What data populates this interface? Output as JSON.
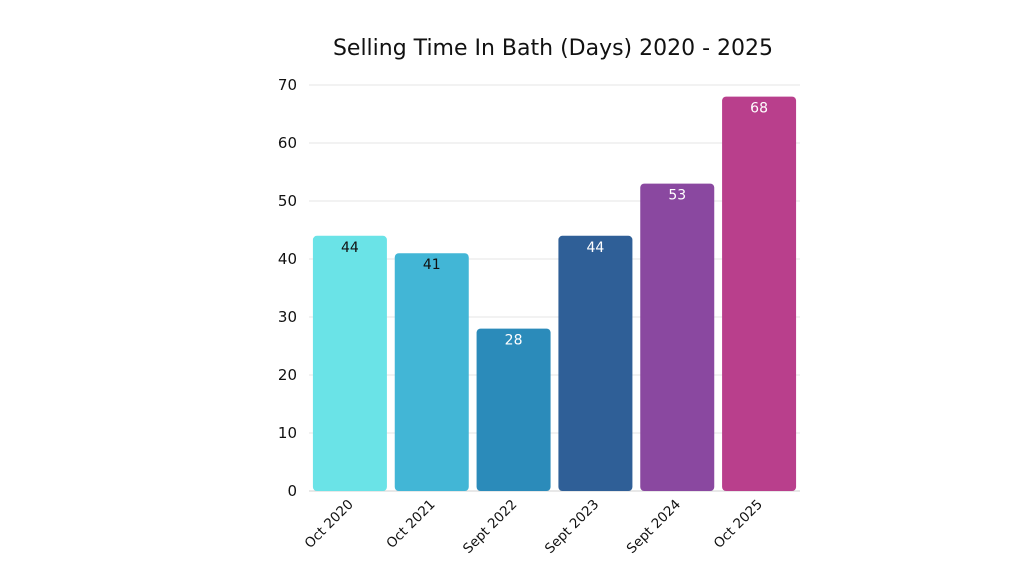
{
  "chart_data": {
    "type": "bar",
    "title": "Selling Time In Bath (Days) 2020 - 2025",
    "xlabel": "",
    "ylabel": "",
    "ylim": [
      0,
      70
    ],
    "yticks": [
      "0",
      "10",
      "20",
      "30",
      "40",
      "50",
      "60",
      "70"
    ],
    "grid": true,
    "categories": [
      "Oct 2020",
      "Oct 2021",
      "Sept 2022",
      "Sept 2023",
      "Sept 2024",
      "Oct 2025"
    ],
    "values": [
      44,
      41,
      28,
      44,
      53,
      68
    ],
    "data_labels": [
      "44",
      "41",
      "28",
      "44",
      "53",
      "68"
    ],
    "colors": [
      "#6ae3e7",
      "#42b6d6",
      "#2b8bba",
      "#2f5f97",
      "#8a48a0",
      "#b93f8c"
    ],
    "label_colors": [
      "#111111",
      "#111111",
      "#ffffff",
      "#ffffff",
      "#ffffff",
      "#ffffff"
    ]
  }
}
